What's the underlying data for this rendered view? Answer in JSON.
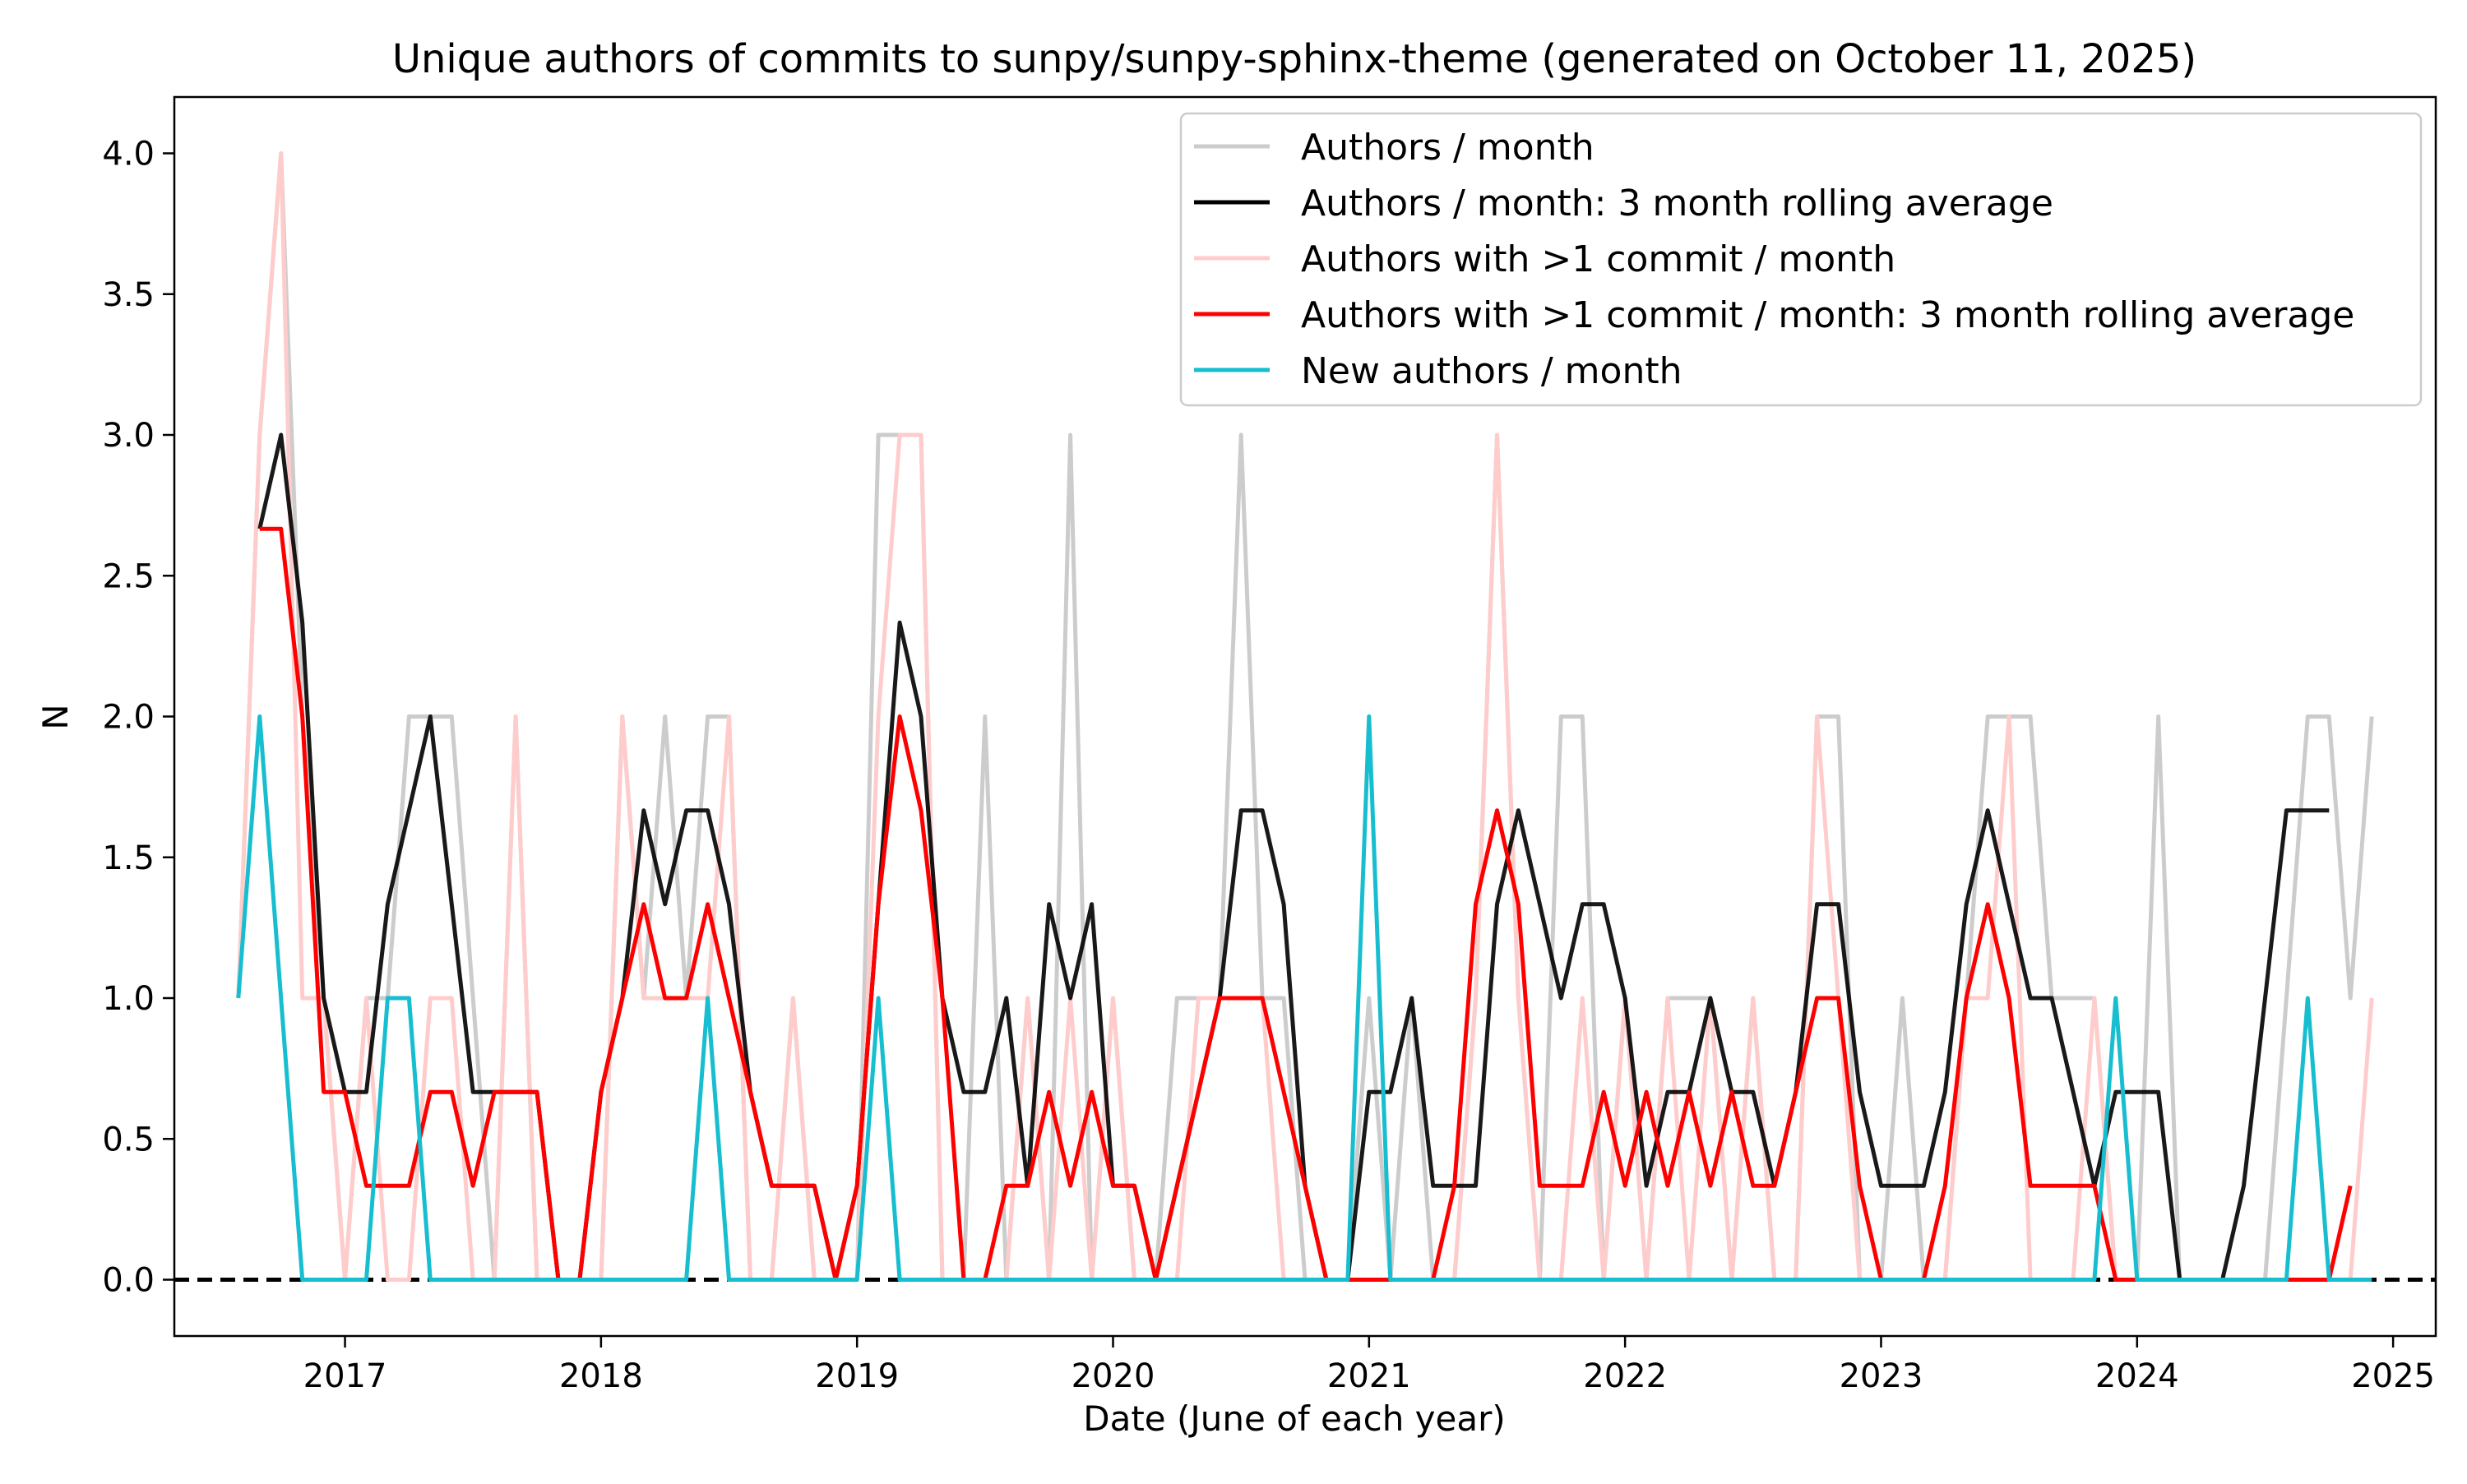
{
  "chart_data": {
    "type": "line",
    "title": "Unique authors of commits to sunpy/sunpy-sphinx-theme (generated on October 11, 2025)",
    "xlabel": "Date (June of each year)",
    "ylabel": "N",
    "xlim": [
      "2016-10",
      "2025-08"
    ],
    "ylim": [
      -0.2,
      4.2
    ],
    "x_ticks": [
      "2017",
      "2018",
      "2019",
      "2020",
      "2021",
      "2022",
      "2023",
      "2024",
      "2025"
    ],
    "y_ticks": [
      "0.0",
      "0.5",
      "1.0",
      "1.5",
      "2.0",
      "2.5",
      "3.0",
      "3.5",
      "4.0"
    ],
    "grid": false,
    "legend_position": "top-right",
    "reference_line": {
      "y": 0,
      "style": "dashed",
      "color": "#000000"
    },
    "x": [
      "2017-01",
      "2017-02",
      "2017-03",
      "2017-04",
      "2017-05",
      "2017-06",
      "2017-07",
      "2017-08",
      "2017-09",
      "2017-10",
      "2017-11",
      "2017-12",
      "2018-01",
      "2018-02",
      "2018-03",
      "2018-04",
      "2018-05",
      "2018-06",
      "2018-07",
      "2018-08",
      "2018-09",
      "2018-10",
      "2018-11",
      "2018-12",
      "2019-01",
      "2019-02",
      "2019-03",
      "2019-04",
      "2019-05",
      "2019-06",
      "2019-07",
      "2019-08",
      "2019-09",
      "2019-10",
      "2019-11",
      "2019-12",
      "2020-01",
      "2020-02",
      "2020-03",
      "2020-04",
      "2020-05",
      "2020-06",
      "2020-07",
      "2020-08",
      "2020-09",
      "2020-10",
      "2020-11",
      "2020-12",
      "2021-01",
      "2021-02",
      "2021-03",
      "2021-04",
      "2021-05",
      "2021-06",
      "2021-07",
      "2021-08",
      "2021-09",
      "2021-10",
      "2021-11",
      "2021-12",
      "2022-01",
      "2022-02",
      "2022-03",
      "2022-04",
      "2022-05",
      "2022-06",
      "2022-07",
      "2022-08",
      "2022-09",
      "2022-10",
      "2022-11",
      "2022-12",
      "2023-01",
      "2023-02",
      "2023-03",
      "2023-04",
      "2023-05",
      "2023-06",
      "2023-07",
      "2023-08",
      "2023-09",
      "2023-10",
      "2023-11",
      "2023-12",
      "2024-01",
      "2024-02",
      "2024-03",
      "2024-04",
      "2024-05",
      "2024-06",
      "2024-07",
      "2024-08",
      "2024-09",
      "2024-10",
      "2024-11",
      "2024-12",
      "2025-01",
      "2025-02",
      "2025-03",
      "2025-04",
      "2025-05",
      "2025-06",
      "2025-07"
    ],
    "series": [
      {
        "name": "Authors / month",
        "color": "#cccccc",
        "values": [
          1,
          3,
          4,
          2,
          1,
          0,
          1,
          1,
          2,
          2,
          2,
          1,
          0,
          2,
          0,
          0,
          0,
          0,
          2,
          1,
          2,
          1,
          2,
          2,
          0,
          0,
          1,
          0,
          0,
          0,
          3,
          3,
          3,
          0,
          0,
          2,
          0,
          1,
          0,
          3,
          0,
          1,
          0,
          0,
          1,
          1,
          1,
          3,
          1,
          1,
          0,
          0,
          0,
          1,
          0,
          1,
          0,
          0,
          1,
          3,
          1,
          0,
          2,
          2,
          0,
          1,
          0,
          1,
          1,
          1,
          0,
          1,
          0,
          0,
          2,
          2,
          0,
          0,
          1,
          0,
          0,
          1,
          2,
          2,
          2,
          1,
          1,
          1,
          0,
          0,
          2,
          0,
          0,
          0,
          0,
          0,
          1,
          2,
          2,
          1,
          2,
          null,
          null
        ]
      },
      {
        "name": "Authors / month: 3 month rolling average",
        "color": "#000000",
        "values": [
          null,
          2.6667,
          3,
          2.3333,
          1,
          0.6667,
          0.6667,
          1.3333,
          1.6667,
          2,
          1.3333,
          0.6667,
          0.6667,
          0.6667,
          0.6667,
          0,
          0,
          0.6667,
          1,
          1.6667,
          1.3333,
          1.6667,
          1.6667,
          1.3333,
          0.6667,
          0.3333,
          0.3333,
          0.3333,
          0,
          0.3333,
          1.3333,
          2.3333,
          2,
          1,
          0.6667,
          0.6667,
          1,
          0.3333,
          1.3333,
          1,
          1.3333,
          0.3333,
          0.3333,
          0,
          0.3333,
          0.6667,
          1,
          1.6667,
          1.6667,
          1.3333,
          0.3333,
          0,
          0,
          0.6667,
          0.6667,
          1,
          0.3333,
          0.3333,
          0.3333,
          1.3333,
          1.6667,
          1.3333,
          1,
          1.3333,
          1.3333,
          1,
          0.3333,
          0.6667,
          0.6667,
          1,
          0.6667,
          0.6667,
          0.3333,
          0.6667,
          1.3333,
          1.3333,
          0.6667,
          0.3333,
          0.3333,
          0.3333,
          0.6667,
          1.3333,
          1.6667,
          1.3333,
          1,
          1,
          0.6667,
          0.3333,
          0.6667,
          0.6667,
          0.6667,
          0,
          0,
          0,
          0.3333,
          1,
          1.6667,
          1.6667,
          1.6667,
          null,
          null,
          null,
          null
        ]
      },
      {
        "name": "Authors with >1 commit / month",
        "color": "#ffcccc",
        "values": [
          1,
          3,
          4,
          1,
          1,
          0,
          1,
          0,
          0,
          1,
          1,
          0,
          0,
          2,
          0,
          0,
          0,
          0,
          2,
          1,
          1,
          1,
          1,
          2,
          0,
          0,
          1,
          0,
          0,
          0,
          2,
          3,
          3,
          0,
          0,
          0,
          0,
          1,
          0,
          1,
          0,
          1,
          0,
          0,
          0,
          1,
          1,
          1,
          1,
          0,
          0,
          0,
          0,
          0,
          0,
          0,
          0,
          0,
          1,
          3,
          1,
          0,
          0,
          1,
          0,
          1,
          0,
          1,
          0,
          1,
          0,
          1,
          0,
          0,
          2,
          1,
          0,
          0,
          0,
          0,
          0,
          1,
          1,
          2,
          0,
          0,
          0,
          1,
          0,
          0,
          0,
          0,
          0,
          0,
          0,
          0,
          0,
          0,
          0,
          0,
          1,
          null,
          null
        ]
      },
      {
        "name": "Authors with >1 commit / month: 3 month rolling average",
        "color": "#ff0000",
        "values": [
          null,
          2.6667,
          2.6667,
          2,
          0.6667,
          0.6667,
          0.3333,
          0.3333,
          0.3333,
          0.6667,
          0.6667,
          0.3333,
          0.6667,
          0.6667,
          0.6667,
          0,
          0,
          0.6667,
          1,
          1.3333,
          1,
          1,
          1.3333,
          1,
          0.6667,
          0.3333,
          0.3333,
          0.3333,
          0,
          0.3333,
          1.3333,
          2,
          1.6667,
          1,
          0,
          0,
          0.3333,
          0.3333,
          0.6667,
          0.3333,
          0.6667,
          0.3333,
          0.3333,
          0,
          0.3333,
          0.6667,
          1,
          1,
          1,
          0.6667,
          0.3333,
          0,
          0,
          0,
          0,
          0,
          0,
          0.3333,
          1.3333,
          1.6667,
          1.3333,
          0.3333,
          0.3333,
          0.3333,
          0.6667,
          0.3333,
          0.6667,
          0.3333,
          0.6667,
          0.3333,
          0.6667,
          0.3333,
          0.3333,
          0.6667,
          1,
          1,
          0.3333,
          0,
          0,
          0,
          0.3333,
          1,
          1.3333,
          1,
          0.3333,
          0.3333,
          0.3333,
          0.3333,
          0,
          0,
          0,
          0,
          0,
          0,
          0,
          0,
          0,
          0,
          0,
          0.3333,
          null,
          null,
          null
        ]
      },
      {
        "name": "New authors / month",
        "color": "#17becf",
        "values": [
          1,
          2,
          1,
          0,
          0,
          0,
          0,
          1,
          1,
          0,
          0,
          0,
          0,
          0,
          0,
          0,
          0,
          0,
          0,
          0,
          0,
          0,
          1,
          0,
          0,
          0,
          0,
          0,
          0,
          0,
          1,
          0,
          0,
          0,
          0,
          0,
          0,
          0,
          0,
          0,
          0,
          0,
          0,
          0,
          0,
          0,
          0,
          0,
          0,
          0,
          0,
          0,
          0,
          2,
          0,
          0,
          0,
          0,
          0,
          0,
          0,
          0,
          0,
          0,
          0,
          0,
          0,
          0,
          0,
          0,
          0,
          0,
          0,
          0,
          0,
          0,
          0,
          0,
          0,
          0,
          0,
          0,
          0,
          0,
          0,
          0,
          0,
          0,
          1,
          0,
          0,
          0,
          0,
          0,
          0,
          0,
          0,
          1,
          0,
          0,
          0,
          null,
          null
        ]
      }
    ]
  }
}
